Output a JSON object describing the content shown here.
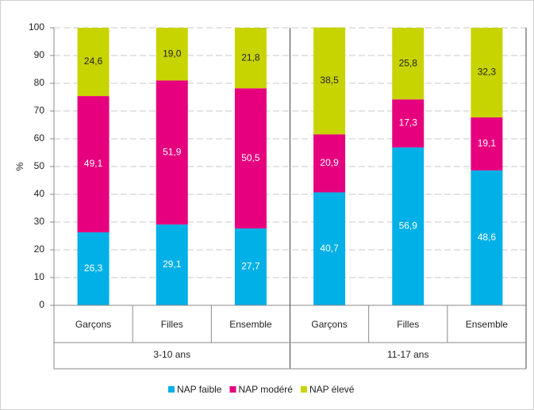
{
  "chart_data": {
    "type": "stacked_bar",
    "groups": [
      {
        "name": "3-10 ans",
        "categories": [
          "Garçons",
          "Filles",
          "Ensemble"
        ]
      },
      {
        "name": "11-17 ans",
        "categories": [
          "Garçons",
          "Filles",
          "Ensemble"
        ]
      }
    ],
    "series": [
      {
        "name": "NAP faible",
        "color": "#00b0e6",
        "values": [
          26.3,
          29.1,
          27.7,
          40.7,
          56.9,
          48.6
        ],
        "value_labels": [
          "26,3",
          "29,1",
          "27,7",
          "40,7",
          "56,9",
          "48,6"
        ]
      },
      {
        "name": "NAP modéré",
        "color": "#e6007e",
        "values": [
          49.1,
          51.9,
          50.5,
          20.9,
          17.3,
          19.1
        ],
        "value_labels": [
          "49,1",
          "51,9",
          "50,5",
          "20,9",
          "17,3",
          "19,1"
        ]
      },
      {
        "name": "NAP élevé",
        "color": "#c8d400",
        "values": [
          24.6,
          19.0,
          21.8,
          38.5,
          25.8,
          32.3
        ],
        "value_labels": [
          "24,6",
          "19,0",
          "21,8",
          "38,5",
          "25,8",
          "32,3"
        ]
      }
    ],
    "y_label": "%",
    "ylim": [
      0,
      100
    ],
    "yticks": [
      0,
      10,
      20,
      30,
      40,
      50,
      60,
      70,
      80,
      90,
      100
    ],
    "grid": true,
    "legend": "bottom"
  }
}
